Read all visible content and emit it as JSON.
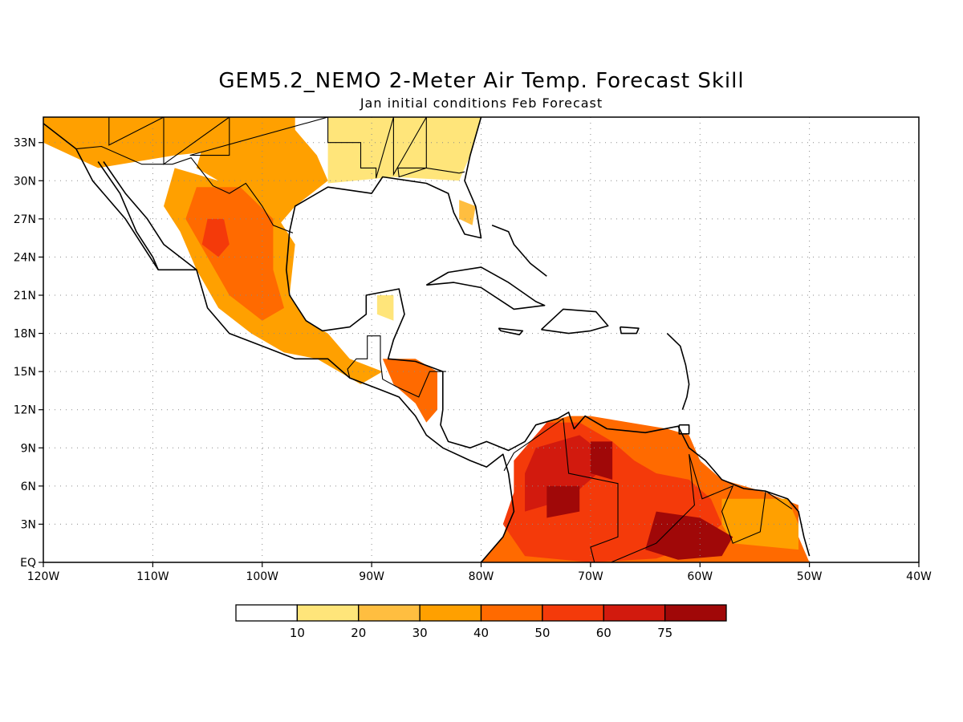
{
  "title": "GEM5.2_NEMO 2-Meter Air Temp. Forecast Skill",
  "subtitle": "Jan initial conditions  Feb Forecast",
  "map": {
    "lon_range": [
      -120,
      -40
    ],
    "lat_range": [
      0,
      35
    ],
    "lon_tick_values": [
      -120,
      -110,
      -100,
      -90,
      -80,
      -70,
      -60,
      -50,
      -40
    ],
    "lon_tick_labels": [
      "120W",
      "110W",
      "100W",
      "90W",
      "80W",
      "70W",
      "60W",
      "50W",
      "40W"
    ],
    "lat_tick_values": [
      0,
      3,
      6,
      9,
      12,
      15,
      18,
      21,
      24,
      27,
      30,
      33
    ],
    "lat_tick_labels": [
      "EQ",
      "3N",
      "6N",
      "9N",
      "12N",
      "15N",
      "18N",
      "21N",
      "24N",
      "27N",
      "30N",
      "33N"
    ],
    "grid": "dotted"
  },
  "legend": {
    "labels": [
      "10",
      "20",
      "30",
      "40",
      "50",
      "60",
      "75"
    ],
    "colors": [
      "#ffffff",
      "#ffe57a",
      "#ffbe40",
      "#ffa000",
      "#ff6a00",
      "#f43a0a",
      "#d21a0e",
      "#a00808"
    ]
  },
  "regions": [
    {
      "name": "southwest-us-band",
      "level": 3,
      "lonlat": [
        [
          -120,
          35
        ],
        [
          -97,
          35
        ],
        [
          -97,
          33
        ],
        [
          -108,
          32
        ],
        [
          -115,
          31
        ],
        [
          -120,
          33
        ]
      ]
    },
    {
      "name": "texas-band",
      "level": 3,
      "lonlat": [
        [
          -105,
          34
        ],
        [
          -97,
          34
        ],
        [
          -95,
          32
        ],
        [
          -94,
          30
        ],
        [
          -97,
          28
        ],
        [
          -99,
          26
        ],
        [
          -102,
          29
        ],
        [
          -106,
          31
        ]
      ]
    },
    {
      "name": "southeast-us-band",
      "level": 1,
      "lonlat": [
        [
          -94,
          35
        ],
        [
          -80,
          35
        ],
        [
          -81,
          32
        ],
        [
          -82,
          30
        ],
        [
          -88,
          30.3
        ],
        [
          -94,
          29.8
        ]
      ]
    },
    {
      "name": "florida-band",
      "level": 2,
      "lonlat": [
        [
          -82,
          28.5
        ],
        [
          -80.5,
          28
        ],
        [
          -80.8,
          26.5
        ],
        [
          -82,
          27
        ]
      ]
    },
    {
      "name": "mexico-band",
      "level": 3,
      "lonlat": [
        [
          -108,
          31
        ],
        [
          -104,
          30
        ],
        [
          -100,
          29
        ],
        [
          -97,
          25
        ],
        [
          -97.5,
          21
        ],
        [
          -96,
          19
        ],
        [
          -94,
          18
        ],
        [
          -92,
          16
        ],
        [
          -89,
          15
        ],
        [
          -91,
          14
        ],
        [
          -95,
          16
        ],
        [
          -98,
          16.5
        ],
        [
          -101,
          18
        ],
        [
          -104,
          20
        ],
        [
          -106,
          23
        ],
        [
          -107.5,
          26
        ],
        [
          -109,
          28
        ]
      ]
    },
    {
      "name": "mexico-core",
      "level": 4,
      "lonlat": [
        [
          -106,
          29.5
        ],
        [
          -102,
          29.5
        ],
        [
          -99,
          27
        ],
        [
          -99,
          23
        ],
        [
          -98,
          20
        ],
        [
          -100,
          19
        ],
        [
          -103,
          21
        ],
        [
          -105,
          24
        ],
        [
          -107,
          27
        ]
      ]
    },
    {
      "name": "mexico-inner",
      "level": 5,
      "lonlat": [
        [
          -105,
          27
        ],
        [
          -103.5,
          27
        ],
        [
          -103,
          25
        ],
        [
          -104,
          24
        ],
        [
          -105.5,
          25
        ]
      ]
    },
    {
      "name": "yucatan",
      "level": 1,
      "lonlat": [
        [
          -89.5,
          21
        ],
        [
          -88,
          21
        ],
        [
          -88,
          19
        ],
        [
          -89.5,
          19.5
        ]
      ]
    },
    {
      "name": "honduras",
      "level": 4,
      "lonlat": [
        [
          -89,
          16
        ],
        [
          -86,
          16
        ],
        [
          -84,
          15
        ],
        [
          -84,
          12
        ],
        [
          -85,
          11
        ],
        [
          -86,
          12.5
        ],
        [
          -88,
          14
        ]
      ]
    },
    {
      "name": "south-america-outer",
      "level": 4,
      "lonlat": [
        [
          -77,
          8
        ],
        [
          -74,
          11
        ],
        [
          -72,
          11.5
        ],
        [
          -70,
          11.5
        ],
        [
          -63,
          10.5
        ],
        [
          -61,
          10
        ],
        [
          -60,
          8
        ],
        [
          -58,
          6.5
        ],
        [
          -54,
          5.5
        ],
        [
          -51,
          4.5
        ],
        [
          -51,
          2
        ],
        [
          -50,
          0
        ],
        [
          -80,
          0
        ],
        [
          -78,
          2
        ],
        [
          -77,
          5
        ]
      ]
    },
    {
      "name": "guiana-band",
      "level": 3,
      "lonlat": [
        [
          -58,
          5
        ],
        [
          -52,
          5
        ],
        [
          -51,
          3
        ],
        [
          -51,
          1
        ],
        [
          -57,
          1.5
        ],
        [
          -58,
          3
        ]
      ]
    },
    {
      "name": "south-america-mid",
      "level": 5,
      "lonlat": [
        [
          -77,
          8
        ],
        [
          -74,
          11
        ],
        [
          -71,
          11
        ],
        [
          -68,
          9.5
        ],
        [
          -66,
          8
        ],
        [
          -64,
          7
        ],
        [
          -61,
          6.5
        ],
        [
          -59,
          5
        ],
        [
          -58,
          3
        ],
        [
          -60,
          1.5
        ],
        [
          -64,
          0.3
        ],
        [
          -70,
          0
        ],
        [
          -76,
          0.5
        ],
        [
          -78,
          3
        ],
        [
          -77,
          5.5
        ]
      ]
    },
    {
      "name": "south-america-inner",
      "level": 6,
      "lonlat": [
        [
          -75,
          9
        ],
        [
          -71,
          10
        ],
        [
          -68,
          8
        ],
        [
          -72,
          5
        ],
        [
          -76,
          4
        ],
        [
          -76,
          7
        ]
      ]
    },
    {
      "name": "south-america-core-north",
      "level": 7,
      "lonlat": [
        [
          -74,
          6
        ],
        [
          -71,
          6
        ],
        [
          -71,
          4
        ],
        [
          -74,
          3.5
        ]
      ]
    },
    {
      "name": "south-america-core-venezuela",
      "level": 7,
      "lonlat": [
        [
          -70,
          9.5
        ],
        [
          -68,
          9.5
        ],
        [
          -68,
          6.5
        ],
        [
          -70,
          7
        ]
      ]
    },
    {
      "name": "south-america-core-south",
      "level": 7,
      "lonlat": [
        [
          -64,
          4
        ],
        [
          -60,
          3.5
        ],
        [
          -57,
          2
        ],
        [
          -58,
          0.5
        ],
        [
          -62,
          0.2
        ],
        [
          -65,
          1
        ]
      ]
    }
  ],
  "coastlines": [
    {
      "name": "pacific-coast",
      "lonlat": [
        [
          -120,
          34.5
        ],
        [
          -117,
          32.5
        ],
        [
          -115.5,
          30
        ],
        [
          -112.5,
          27
        ],
        [
          -109.5,
          23
        ],
        [
          -106,
          23
        ],
        [
          -105,
          20
        ],
        [
          -103,
          18
        ],
        [
          -100,
          17
        ],
        [
          -97,
          16
        ],
        [
          -94,
          16
        ],
        [
          -92,
          14.5
        ],
        [
          -89,
          13.5
        ],
        [
          -87.5,
          13
        ],
        [
          -86,
          11.5
        ],
        [
          -85,
          10
        ],
        [
          -83.5,
          9
        ],
        [
          -81,
          8
        ],
        [
          -79.5,
          7.5
        ],
        [
          -78,
          8.5
        ],
        [
          -77.5,
          7
        ],
        [
          -77,
          4
        ],
        [
          -78,
          2
        ],
        [
          -80,
          0
        ]
      ]
    },
    {
      "name": "baja-east-coast",
      "lonlat": [
        [
          -115,
          31.5
        ],
        [
          -113,
          29
        ],
        [
          -111.5,
          26
        ],
        [
          -110,
          24
        ],
        [
          -109.5,
          23
        ]
      ]
    },
    {
      "name": "gulf-of-california-east",
      "lonlat": [
        [
          -114.5,
          31.5
        ],
        [
          -112.5,
          29
        ],
        [
          -110.5,
          27
        ],
        [
          -109,
          25
        ],
        [
          -106,
          23
        ]
      ]
    },
    {
      "name": "gulf-coast",
      "lonlat": [
        [
          -80,
          35
        ],
        [
          -81,
          32
        ],
        [
          -81.5,
          30
        ],
        [
          -80.5,
          28
        ],
        [
          -80,
          25.5
        ],
        [
          -81.5,
          25.8
        ],
        [
          -82.5,
          27.5
        ],
        [
          -83,
          29
        ],
        [
          -85,
          29.8
        ],
        [
          -89,
          30.3
        ],
        [
          -90,
          29
        ],
        [
          -94,
          29.5
        ],
        [
          -97,
          28
        ],
        [
          -97.5,
          26
        ],
        [
          -97.8,
          23
        ],
        [
          -97.5,
          21
        ],
        [
          -96,
          19
        ],
        [
          -94.5,
          18.2
        ],
        [
          -92,
          18.5
        ],
        [
          -90.5,
          19.5
        ],
        [
          -90.5,
          21
        ],
        [
          -87.5,
          21.5
        ],
        [
          -87,
          19.5
        ],
        [
          -88,
          17.5
        ],
        [
          -88.5,
          16
        ],
        [
          -86,
          15.8
        ],
        [
          -83.5,
          15
        ],
        [
          -83.5,
          12
        ],
        [
          -83.7,
          10.8
        ],
        [
          -83,
          9.5
        ],
        [
          -81,
          9
        ],
        [
          -79.5,
          9.5
        ],
        [
          -77.5,
          8.8
        ],
        [
          -76,
          9.5
        ],
        [
          -75,
          10.8
        ],
        [
          -73,
          11.3
        ],
        [
          -72,
          11.8
        ],
        [
          -71.5,
          10.5
        ],
        [
          -70.5,
          11.5
        ],
        [
          -68.5,
          10.5
        ],
        [
          -65,
          10.2
        ],
        [
          -62,
          10.7
        ],
        [
          -61,
          9
        ],
        [
          -59.5,
          8
        ],
        [
          -58,
          6.5
        ],
        [
          -56,
          5.8
        ],
        [
          -54,
          5.6
        ],
        [
          -52,
          5
        ],
        [
          -51,
          4
        ],
        [
          -50.5,
          2
        ],
        [
          -50,
          0.5
        ]
      ]
    },
    {
      "name": "cuba",
      "lonlat": [
        [
          -85,
          21.8
        ],
        [
          -83,
          22.8
        ],
        [
          -80,
          23.2
        ],
        [
          -77.5,
          22
        ],
        [
          -75,
          20.5
        ],
        [
          -74.2,
          20.2
        ],
        [
          -77,
          19.9
        ],
        [
          -80,
          21.6
        ],
        [
          -82.5,
          22
        ],
        [
          -85,
          21.8
        ]
      ]
    },
    {
      "name": "hispaniola",
      "lonlat": [
        [
          -74.5,
          18.3
        ],
        [
          -72.5,
          19.9
        ],
        [
          -69.5,
          19.7
        ],
        [
          -68.4,
          18.6
        ],
        [
          -70,
          18.2
        ],
        [
          -72,
          18
        ],
        [
          -74.5,
          18.3
        ]
      ]
    },
    {
      "name": "jamaica",
      "lonlat": [
        [
          -78.4,
          18.4
        ],
        [
          -76.2,
          18.2
        ],
        [
          -76.5,
          17.9
        ],
        [
          -78.2,
          18.2
        ],
        [
          -78.4,
          18.4
        ]
      ]
    },
    {
      "name": "puerto-rico",
      "lonlat": [
        [
          -67.3,
          18.5
        ],
        [
          -65.6,
          18.4
        ],
        [
          -65.8,
          18
        ],
        [
          -67.2,
          18
        ],
        [
          -67.3,
          18.5
        ]
      ]
    },
    {
      "name": "lesser-antilles",
      "lonlat": [
        [
          -63,
          18
        ],
        [
          -61.8,
          17
        ],
        [
          -61.3,
          15.5
        ],
        [
          -61,
          14
        ],
        [
          -61.2,
          13
        ],
        [
          -61.6,
          12
        ]
      ]
    },
    {
      "name": "bahamas",
      "lonlat": [
        [
          -79,
          26.5
        ],
        [
          -77.5,
          26
        ],
        [
          -77,
          25
        ],
        [
          -75.5,
          23.5
        ],
        [
          -74,
          22.5
        ]
      ]
    },
    {
      "name": "trinidad",
      "lonlat": [
        [
          -61.9,
          10.8
        ],
        [
          -61,
          10.8
        ],
        [
          -61,
          10.1
        ],
        [
          -61.9,
          10.1
        ],
        [
          -61.9,
          10.8
        ]
      ]
    }
  ],
  "borders": [
    {
      "name": "us-mexico-border",
      "lonlat": [
        [
          -117,
          32.5
        ],
        [
          -114.7,
          32.7
        ],
        [
          -111,
          31.3
        ],
        [
          -108.2,
          31.3
        ],
        [
          -106.5,
          31.8
        ],
        [
          -104.5,
          29.6
        ],
        [
          -103,
          29
        ],
        [
          -101.5,
          29.8
        ],
        [
          -100,
          28
        ],
        [
          -99,
          26.5
        ],
        [
          -97.2,
          25.9
        ]
      ]
    },
    {
      "name": "us-state-lines",
      "lonlat": [
        [
          -114,
          35
        ],
        [
          -114,
          32.8
        ],
        [
          -109,
          35
        ],
        [
          -109,
          31.3
        ],
        [
          -103,
          35
        ],
        [
          -103,
          32
        ],
        [
          -106.6,
          32
        ],
        [
          -94,
          35
        ],
        [
          -94,
          33
        ],
        [
          -91,
          33
        ],
        [
          -91,
          31
        ],
        [
          -89.6,
          31
        ],
        [
          -89.6,
          30.2
        ],
        [
          -88,
          35
        ],
        [
          -88,
          30.5
        ],
        [
          -85,
          35
        ],
        [
          -85,
          31
        ],
        [
          -87.6,
          31
        ],
        [
          -87.5,
          30.3
        ],
        [
          -85,
          31
        ],
        [
          -82,
          30.6
        ],
        [
          -81.5,
          30.7
        ]
      ]
    },
    {
      "name": "central-america-borders",
      "lonlat": [
        [
          -92,
          14.5
        ],
        [
          -92.2,
          15.2
        ],
        [
          -91.4,
          16
        ],
        [
          -90.4,
          16
        ],
        [
          -90.4,
          17.8
        ],
        [
          -89.2,
          17.8
        ],
        [
          -89.2,
          15.8
        ],
        [
          -89,
          14.4
        ],
        [
          -87.7,
          13.8
        ],
        [
          -85.7,
          13
        ],
        [
          -84.7,
          15
        ],
        [
          -83.2,
          15
        ]
      ]
    },
    {
      "name": "south-america-borders",
      "lonlat": [
        [
          -77.9,
          7.2
        ],
        [
          -77,
          8.6
        ],
        [
          -72.5,
          11.3
        ],
        [
          -72,
          7
        ],
        [
          -67.5,
          6.2
        ],
        [
          -67.5,
          2
        ],
        [
          -70,
          1.2
        ],
        [
          -69.5,
          -0.5
        ],
        [
          -64,
          1.5
        ],
        [
          -60.5,
          4.5
        ],
        [
          -61,
          8.5
        ],
        [
          -59.8,
          5
        ],
        [
          -57,
          6
        ],
        [
          -58,
          4
        ],
        [
          -57,
          1.5
        ],
        [
          -54.5,
          2.4
        ],
        [
          -54,
          5.6
        ],
        [
          -51.6,
          4.2
        ]
      ]
    }
  ]
}
